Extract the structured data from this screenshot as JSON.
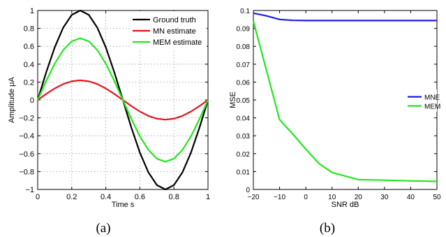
{
  "chart_data": [
    {
      "type": "line",
      "title": "",
      "xlabel": "Time s",
      "ylabel": "Amplitude   μA",
      "xlim": [
        0,
        1
      ],
      "ylim": [
        -1,
        1
      ],
      "xticks": [
        0,
        0.2,
        0.4,
        0.6,
        0.8,
        1
      ],
      "xtick_labels": [
        "0",
        "0.2",
        "0.4",
        "0.6",
        "0.8",
        "1"
      ],
      "yticks": [
        -1,
        -0.8,
        -0.6,
        -0.4,
        -0.2,
        0,
        0.2,
        0.4,
        0.6,
        0.8,
        1
      ],
      "ytick_labels": [
        "−1",
        "−0.8",
        "−0.6",
        "−0.4",
        "−0.2",
        "0",
        "0.2",
        "0.4",
        "0.6",
        "0.8",
        "1"
      ],
      "grid": true,
      "legend_position": "top-right",
      "caption": "(a)",
      "x": [
        0,
        0.05,
        0.1,
        0.15,
        0.2,
        0.25,
        0.3,
        0.35,
        0.4,
        0.45,
        0.5,
        0.55,
        0.6,
        0.65,
        0.7,
        0.75,
        0.8,
        0.85,
        0.9,
        0.95,
        1
      ],
      "series": [
        {
          "name": "Ground truth",
          "color": "#000000",
          "values": [
            0,
            0.309,
            0.588,
            0.809,
            0.951,
            1,
            0.951,
            0.809,
            0.588,
            0.309,
            0,
            -0.309,
            -0.588,
            -0.809,
            -0.951,
            -1,
            -0.951,
            -0.809,
            -0.588,
            -0.309,
            0
          ]
        },
        {
          "name": "MN estimate",
          "color": "#e8141c",
          "values": [
            0,
            0.068,
            0.129,
            0.178,
            0.209,
            0.22,
            0.209,
            0.178,
            0.129,
            0.068,
            0,
            -0.068,
            -0.129,
            -0.178,
            -0.209,
            -0.22,
            -0.209,
            -0.178,
            -0.129,
            -0.068,
            0
          ]
        },
        {
          "name": "MEM estimate",
          "color": "#22e81c",
          "values": [
            0,
            0.213,
            0.406,
            0.558,
            0.656,
            0.69,
            0.656,
            0.558,
            0.406,
            0.213,
            0,
            -0.213,
            -0.406,
            -0.558,
            -0.656,
            -0.69,
            -0.656,
            -0.558,
            -0.406,
            -0.213,
            0
          ]
        }
      ]
    },
    {
      "type": "line",
      "title": "",
      "xlabel": "SNR dB",
      "ylabel": "MSE",
      "xlim": [
        -20,
        50
      ],
      "ylim": [
        0,
        0.1
      ],
      "xticks": [
        -20,
        -10,
        0,
        10,
        20,
        30,
        40,
        50
      ],
      "xtick_labels": [
        "−20",
        "−10",
        "0",
        "10",
        "20",
        "30",
        "40",
        "50"
      ],
      "yticks": [
        0,
        0.01,
        0.02,
        0.03,
        0.04,
        0.05,
        0.06,
        0.07,
        0.08,
        0.09,
        0.1
      ],
      "ytick_labels": [
        "0",
        "0.01",
        "0.02",
        "0.03",
        "0.04",
        "0.05",
        "0.06",
        "0.07",
        "0.08",
        "0.09",
        "0.1"
      ],
      "grid": false,
      "legend_position": "right",
      "caption": "(b)",
      "series": [
        {
          "name": "MNE",
          "color": "#1c1ce8",
          "x": [
            -20,
            -15,
            -10,
            -5,
            0,
            10,
            20,
            30,
            40,
            50
          ],
          "values": [
            0.0985,
            0.097,
            0.095,
            0.0945,
            0.0944,
            0.0944,
            0.0944,
            0.0944,
            0.0944,
            0.0944
          ]
        },
        {
          "name": "MEM",
          "color": "#22e81c",
          "x": [
            -20,
            -10,
            -5,
            0,
            5,
            10,
            20,
            30,
            40,
            50
          ],
          "values": [
            0.094,
            0.039,
            0.031,
            0.0225,
            0.0145,
            0.0095,
            0.0055,
            0.0052,
            0.0048,
            0.0045
          ]
        }
      ]
    }
  ]
}
